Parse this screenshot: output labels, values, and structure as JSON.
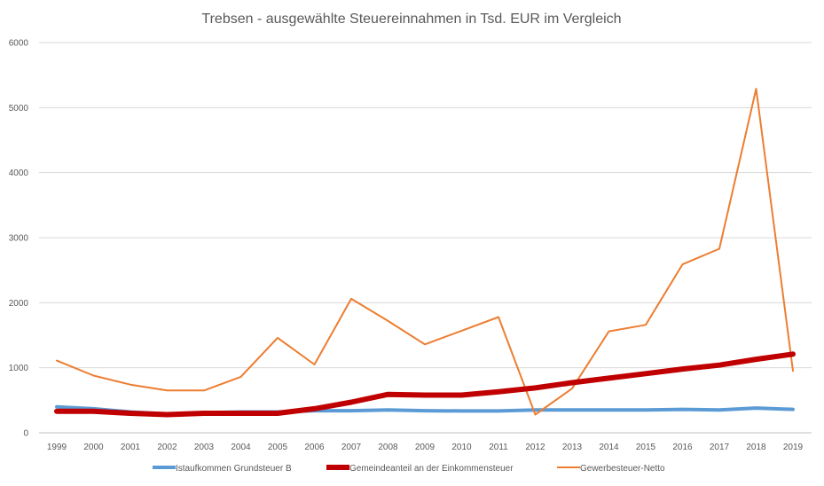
{
  "chart_data": {
    "type": "line",
    "title": "Trebsen - ausgewählte Steuereinnahmen in Tsd. EUR im Vergleich",
    "xlabel": "",
    "ylabel": "",
    "categories": [
      "1999",
      "2000",
      "2001",
      "2002",
      "2003",
      "2004",
      "2005",
      "2006",
      "2007",
      "2008",
      "2009",
      "2010",
      "2011",
      "2012",
      "2013",
      "2014",
      "2015",
      "2016",
      "2017",
      "2018",
      "2019"
    ],
    "y_ticks": [
      "0",
      "1000",
      "2000",
      "3000",
      "4000",
      "5000",
      "6000"
    ],
    "ylim": [
      0,
      6000
    ],
    "grid": "horizontal",
    "legend_position": "bottom",
    "series": [
      {
        "name": "Istaufkommen Grundsteuer B",
        "color": "#5B9BD5",
        "values": [
          400,
          370,
          320,
          290,
          310,
          320,
          320,
          340,
          340,
          350,
          340,
          335,
          335,
          350,
          350,
          350,
          350,
          360,
          350,
          380,
          360
        ]
      },
      {
        "name": "Gemeindeanteil an der Einkommensteuer",
        "color": "#C00000",
        "values": [
          330,
          330,
          300,
          280,
          300,
          300,
          300,
          370,
          470,
          590,
          580,
          580,
          630,
          690,
          770,
          840,
          910,
          980,
          1040,
          1130,
          1210
        ]
      },
      {
        "name": "Gewerbesteuer-Netto",
        "color": "#ED7D31",
        "values": [
          1110,
          880,
          740,
          650,
          650,
          860,
          1460,
          1050,
          2060,
          1720,
          1360,
          1570,
          1780,
          280,
          680,
          1560,
          1660,
          2590,
          2830,
          5290,
          950
        ]
      }
    ]
  }
}
